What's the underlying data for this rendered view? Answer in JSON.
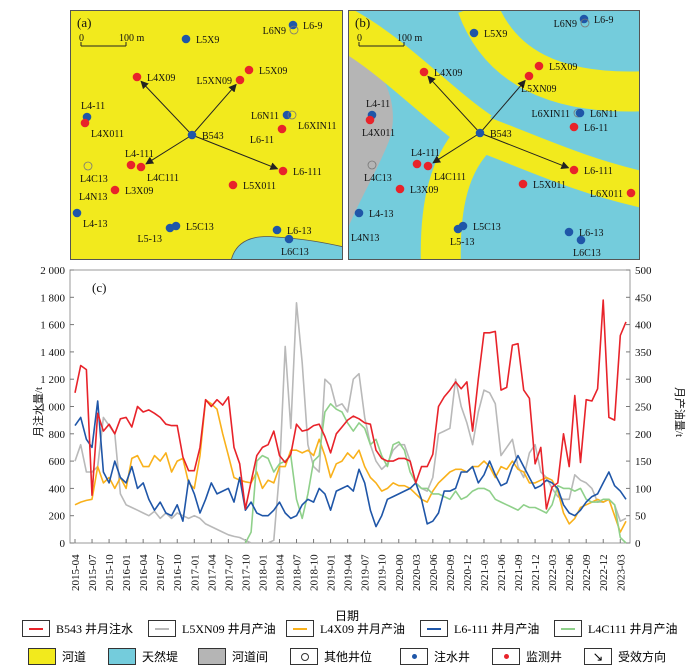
{
  "map_a": {
    "panel_label": "(a)",
    "scale_zero": "0",
    "scale_label": "100 m",
    "wells": [
      "L6-9",
      "L6N9",
      "L5X9",
      "L4X09",
      "L5XN09",
      "L5X09",
      "L4-11",
      "L4X011",
      "B543",
      "L6N11",
      "L6XIN11",
      "L6-11",
      "L4-111",
      "L4C111",
      "L4C13",
      "L6-111",
      "L5X011",
      "L3X09",
      "L4N13",
      "L4-13",
      "L5-13",
      "L5C13",
      "L6-13",
      "L6C13"
    ]
  },
  "map_b": {
    "panel_label": "(b)",
    "scale_zero": "0",
    "scale_label": "100 m",
    "wells": [
      "L6-9",
      "L6N9",
      "L5X9",
      "L4X09",
      "L5X09",
      "L5XN09",
      "L4-11",
      "L4X011",
      "B543",
      "L6XIN11",
      "L6N11",
      "L6-11",
      "L4-111",
      "L4C111",
      "L4C13",
      "L6-111",
      "L5X011",
      "L6X011",
      "L3X09",
      "L4-13",
      "L4N13",
      "L5C13",
      "L5-13",
      "L6-13",
      "L6C13"
    ]
  },
  "chart_data": {
    "type": "line",
    "panel_label": "(c)",
    "xlabel": "日期",
    "ylabel": "月注水量/t",
    "ylabel_right": "月产油量/t",
    "ylim": [
      0,
      2000
    ],
    "ylim_right": [
      0,
      500
    ],
    "yticks": [
      "0",
      "200",
      "400",
      "600",
      "800",
      "1 000",
      "1 200",
      "1 400",
      "1 600",
      "1 800",
      "2 000"
    ],
    "yticks_right": [
      "0",
      "50",
      "100",
      "150",
      "200",
      "250",
      "300",
      "350",
      "400",
      "450",
      "500"
    ],
    "xticks": [
      "2015-04",
      "2015-07",
      "2015-10",
      "2016-01",
      "2016-04",
      "2016-07",
      "2016-10",
      "2017-01",
      "2017-04",
      "2017-07",
      "2017-10",
      "2018-01",
      "2018-04",
      "2018-07",
      "2018-10",
      "2019-01",
      "2019-04",
      "2019-07",
      "2019-10",
      "2020-00",
      "2020-03",
      "2020-06",
      "2020-09",
      "2020-12",
      "2021-03",
      "2021-06",
      "2021-09",
      "2021-12",
      "2022-03",
      "2022-06",
      "2022-09",
      "2022-12",
      "2023-03"
    ],
    "x_start": "2015-04",
    "x_step": "monthly",
    "series": [
      {
        "name": "B543 井月注水",
        "axis": "left",
        "color": "#e8232a",
        "values": [
          1100,
          1300,
          1270,
          350,
          950,
          820,
          870,
          800,
          910,
          920,
          850,
          1000,
          960,
          975,
          950,
          920,
          870,
          860,
          860,
          630,
          530,
          530,
          700,
          1050,
          1000,
          1050,
          1010,
          1070,
          700,
          580,
          250,
          450,
          640,
          700,
          720,
          820,
          640,
          590,
          650,
          870,
          820,
          830,
          860,
          870,
          780,
          660,
          800,
          850,
          900,
          930,
          910,
          880,
          870,
          680,
          620,
          600,
          600,
          620,
          620,
          600,
          440,
          560,
          560,
          650,
          1000,
          1070,
          1120,
          1180,
          1130,
          1180,
          820,
          1200,
          1540,
          1540,
          1550,
          1120,
          1140,
          1450,
          1460,
          1120,
          1060,
          580,
          700,
          250,
          410,
          440,
          800,
          560,
          1080,
          590,
          1050,
          1040,
          1130,
          1780,
          920,
          900,
          1520,
          1620
        ]
      },
      {
        "name": "L5XN09 井月产油",
        "axis": "right",
        "color": "#b9b9b9",
        "values": [
          150,
          180,
          130,
          130,
          140,
          230,
          215,
          200,
          90,
          70,
          65,
          60,
          55,
          50,
          58,
          45,
          55,
          45,
          55,
          50,
          45,
          50,
          45,
          35,
          30,
          25,
          20,
          15,
          12,
          10,
          5,
          0,
          0,
          0,
          0,
          5,
          130,
          360,
          210,
          440,
          330,
          180,
          140,
          130,
          300,
          290,
          250,
          255,
          240,
          300,
          310,
          230,
          180,
          150,
          135,
          145,
          170,
          180,
          180,
          150,
          110,
          100,
          95,
          120,
          200,
          205,
          210,
          300,
          250,
          220,
          180,
          240,
          280,
          275,
          255,
          160,
          175,
          190,
          140,
          120,
          165,
          180,
          130,
          120,
          100,
          85,
          80,
          80,
          125,
          115,
          110,
          100,
          75,
          75,
          80,
          70,
          40,
          45
        ]
      },
      {
        "name": "L4X09 井月产油",
        "axis": "right",
        "color": "#f9b11b",
        "values": [
          70,
          75,
          78,
          80,
          140,
          110,
          120,
          100,
          120,
          100,
          155,
          160,
          140,
          140,
          160,
          150,
          165,
          130,
          150,
          155,
          110,
          100,
          160,
          262,
          255,
          245,
          200,
          160,
          120,
          115,
          112,
          110,
          130,
          100,
          115,
          110,
          140,
          140,
          170,
          170,
          165,
          170,
          160,
          190,
          160,
          120,
          145,
          150,
          165,
          155,
          170,
          140,
          120,
          110,
          95,
          100,
          110,
          105,
          105,
          100,
          90,
          80,
          75,
          95,
          110,
          120,
          130,
          135,
          135,
          130,
          140,
          140,
          150,
          140,
          120,
          140,
          135,
          150,
          135,
          130,
          110,
          110,
          115,
          120,
          115,
          95,
          55,
          35,
          45,
          65,
          70,
          75,
          80,
          75,
          80,
          50,
          20,
          40
        ]
      },
      {
        "name": "L6-111 井月产油",
        "axis": "right",
        "color": "#1f56a8",
        "values": [
          215,
          230,
          190,
          175,
          260,
          130,
          110,
          150,
          120,
          110,
          140,
          100,
          110,
          80,
          60,
          75,
          55,
          50,
          70,
          40,
          115,
          90,
          55,
          80,
          110,
          90,
          95,
          100,
          75,
          120,
          60,
          75,
          55,
          50,
          50,
          60,
          75,
          55,
          45,
          50,
          70,
          80,
          75,
          100,
          90,
          60,
          95,
          100,
          105,
          95,
          135,
          110,
          60,
          30,
          50,
          80,
          85,
          90,
          95,
          100,
          110,
          80,
          35,
          40,
          55,
          95,
          95,
          100,
          130,
          130,
          140,
          110,
          125,
          150,
          125,
          105,
          110,
          140,
          160,
          140,
          120,
          100,
          105,
          115,
          110,
          100,
          70,
          55,
          50,
          60,
          75,
          85,
          90,
          110,
          130,
          105,
          95,
          80
        ]
      },
      {
        "name": "L4C111 井月产油",
        "axis": "right",
        "color": "#8fd08a",
        "values": [
          null,
          null,
          null,
          null,
          null,
          null,
          null,
          null,
          null,
          null,
          null,
          null,
          null,
          null,
          null,
          null,
          null,
          null,
          null,
          null,
          null,
          null,
          null,
          null,
          null,
          null,
          null,
          null,
          null,
          null,
          0,
          20,
          150,
          160,
          155,
          130,
          145,
          150,
          160,
          80,
          45,
          90,
          150,
          160,
          240,
          255,
          245,
          240,
          220,
          205,
          220,
          210,
          180,
          190,
          160,
          140,
          180,
          185,
          170,
          130,
          110,
          100,
          100,
          90,
          90,
          85,
          80,
          95,
          80,
          85,
          95,
          100,
          100,
          95,
          80,
          75,
          70,
          65,
          60,
          70,
          65,
          65,
          60,
          55,
          70,
          105,
          100,
          100,
          95,
          100,
          80,
          75,
          75,
          80,
          80,
          70,
          10,
          0
        ]
      }
    ]
  },
  "legend": {
    "series": [
      "B543 井月注水",
      "L5XN09 井月产油",
      "L4X09 井月产油",
      "L6-111 井月产油",
      "L4C111 井月产油"
    ],
    "map": [
      "河道",
      "天然堤",
      "河道间",
      "其他井位",
      "注水井",
      "监测井",
      "受效方向"
    ],
    "colors": {
      "channel": "#f2ea1d",
      "levee": "#74ccdc",
      "interchannel": "#b5b5b5",
      "injector": "#1f56a8",
      "monitor": "#e8232a"
    }
  }
}
